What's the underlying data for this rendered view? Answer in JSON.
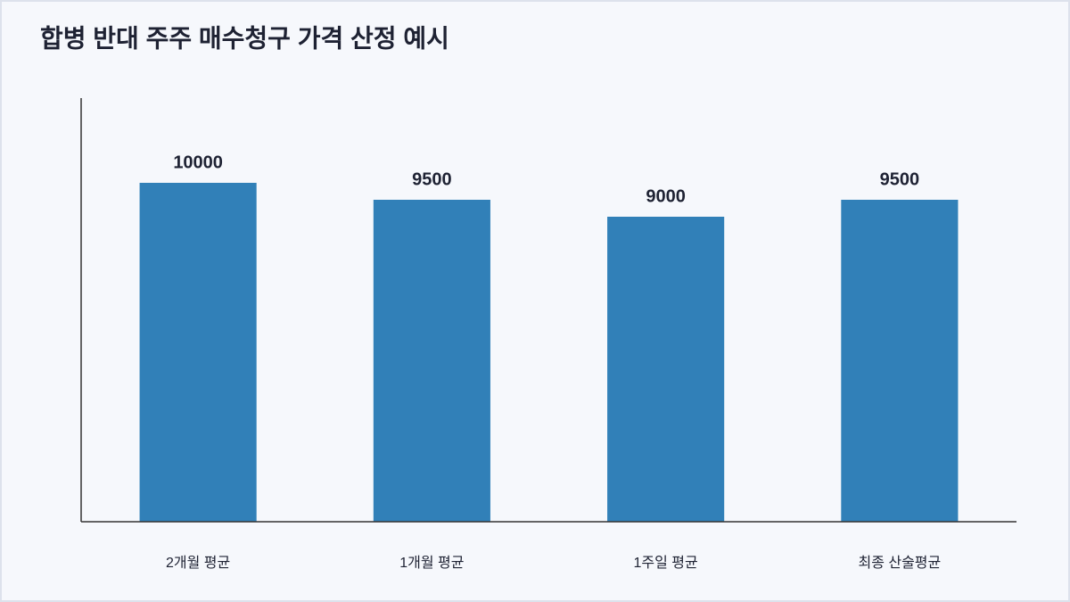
{
  "chart_data": {
    "type": "bar",
    "title": "합병 반대 주주 매수청구 가격 산정 예시",
    "categories": [
      "2개월 평균",
      "1개월 평균",
      "1주일 평균",
      "최종 산술평균"
    ],
    "values": [
      10000,
      9500,
      9000,
      9500
    ],
    "color": "#3180b8",
    "ylim": [
      0,
      12500
    ],
    "grid": false
  }
}
